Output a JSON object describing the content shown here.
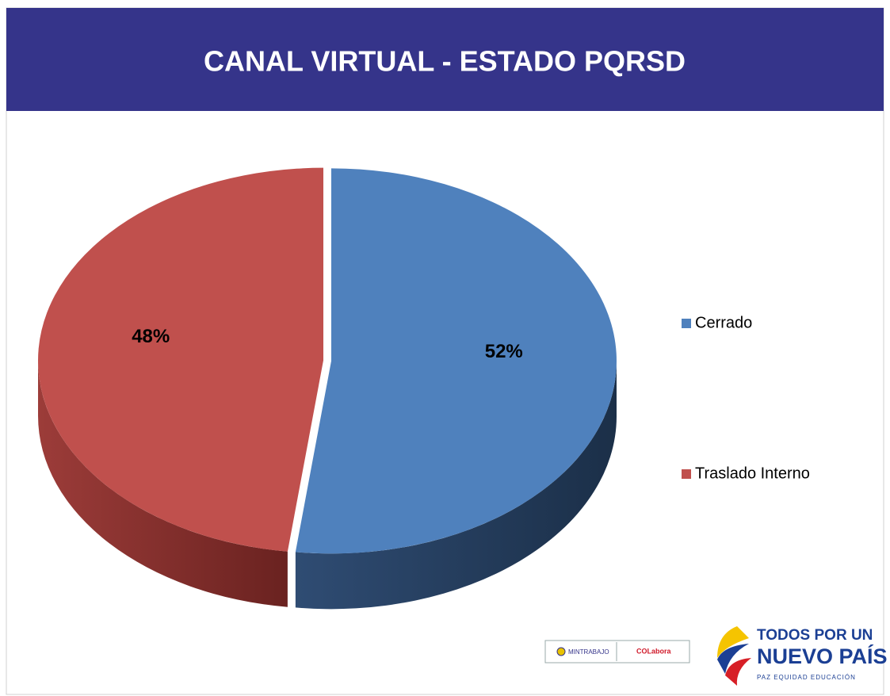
{
  "chart_data": {
    "type": "pie",
    "title": "CANAL VIRTUAL - ESTADO PQRSD",
    "categories": [
      "Cerrado",
      "Traslado Interno"
    ],
    "values": [
      52,
      48
    ],
    "value_labels": [
      "52%",
      "48%"
    ],
    "colors": [
      "#4f81bd",
      "#c0504d"
    ],
    "legend": "right"
  },
  "footer": {
    "logo_left": [
      "MINTRABAJO",
      "COLabora"
    ],
    "logo_right": [
      "TODOS POR UN",
      "NUEVO PAÍS",
      "PAZ  EQUIDAD  EDUCACIÓN"
    ]
  }
}
